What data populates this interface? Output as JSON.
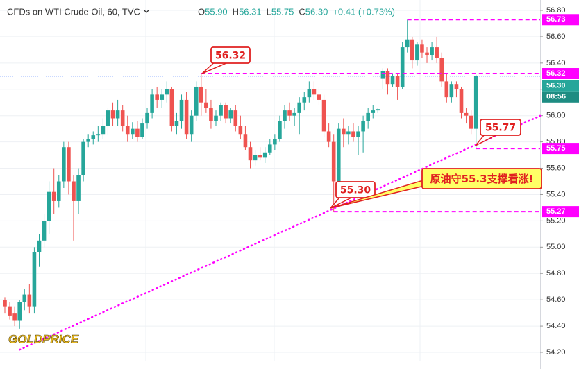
{
  "chart_data": {
    "type": "candlestick",
    "header": {
      "title": "CFDs on WTI Crude Oil, 60, TVC",
      "fields": [
        {
          "key": "O",
          "value": "55.90"
        },
        {
          "key": "H",
          "value": "56.31"
        },
        {
          "key": "L",
          "value": "55.75"
        },
        {
          "key": "C",
          "value": "56.30"
        }
      ],
      "change": "+0.41 (+0.73%)"
    },
    "up_color": "#26a69a",
    "down_color": "#ef5350",
    "ohlc": [
      [
        54.6,
        54.62,
        54.5,
        54.55
      ],
      [
        54.55,
        54.58,
        54.45,
        54.48
      ],
      [
        54.5,
        54.55,
        54.4,
        54.44
      ],
      [
        54.44,
        54.6,
        54.38,
        54.58
      ],
      [
        54.58,
        54.68,
        54.52,
        54.64
      ],
      [
        54.64,
        54.72,
        54.5,
        54.55
      ],
      [
        54.55,
        55.0,
        54.5,
        54.96
      ],
      [
        54.96,
        55.1,
        54.85,
        55.05
      ],
      [
        55.05,
        55.25,
        55.0,
        55.2
      ],
      [
        55.2,
        55.5,
        55.1,
        55.42
      ],
      [
        55.42,
        55.6,
        55.25,
        55.35
      ],
      [
        55.35,
        55.55,
        55.3,
        55.5
      ],
      [
        55.5,
        55.8,
        55.45,
        55.76
      ],
      [
        55.76,
        55.8,
        55.4,
        55.5
      ],
      [
        55.5,
        55.55,
        55.05,
        55.35
      ],
      [
        55.35,
        55.6,
        55.25,
        55.55
      ],
      [
        55.55,
        55.82,
        55.5,
        55.8
      ],
      [
        55.8,
        55.86,
        55.76,
        55.82
      ],
      [
        55.82,
        55.88,
        55.78,
        55.85
      ],
      [
        55.85,
        55.92,
        55.8,
        55.86
      ],
      [
        55.86,
        55.98,
        55.82,
        55.92
      ],
      [
        55.92,
        56.06,
        55.85,
        56.04
      ],
      [
        56.04,
        56.1,
        55.92,
        55.98
      ],
      [
        55.98,
        56.12,
        55.92,
        56.04
      ],
      [
        56.04,
        56.08,
        55.88,
        55.92
      ],
      [
        55.92,
        56.0,
        55.8,
        55.86
      ],
      [
        55.86,
        55.95,
        55.82,
        55.9
      ],
      [
        55.9,
        55.96,
        55.8,
        55.84
      ],
      [
        55.84,
        55.98,
        55.82,
        55.94
      ],
      [
        55.94,
        56.06,
        55.9,
        56.02
      ],
      [
        56.02,
        56.2,
        55.98,
        56.16
      ],
      [
        56.16,
        56.22,
        56.06,
        56.12
      ],
      [
        56.12,
        56.2,
        56.06,
        56.16
      ],
      [
        56.16,
        56.26,
        56.1,
        56.2
      ],
      [
        56.2,
        56.22,
        55.88,
        55.92
      ],
      [
        55.92,
        56.02,
        55.86,
        55.96
      ],
      [
        55.96,
        56.16,
        55.9,
        56.12
      ],
      [
        56.12,
        56.18,
        55.82,
        55.86
      ],
      [
        55.86,
        56.04,
        55.8,
        56.0
      ],
      [
        56.0,
        56.26,
        55.96,
        56.22
      ],
      [
        56.22,
        56.32,
        56.0,
        56.1
      ],
      [
        56.1,
        56.2,
        56.02,
        56.06
      ],
      [
        56.06,
        56.12,
        55.9,
        55.96
      ],
      [
        55.96,
        56.04,
        55.92,
        56.0
      ],
      [
        56.0,
        56.1,
        55.96,
        56.08
      ],
      [
        56.08,
        56.1,
        55.94,
        55.98
      ],
      [
        55.98,
        56.06,
        55.94,
        56.04
      ],
      [
        56.04,
        56.08,
        55.88,
        55.92
      ],
      [
        55.92,
        56.0,
        55.82,
        55.86
      ],
      [
        55.86,
        55.92,
        55.74,
        55.76
      ],
      [
        55.76,
        55.8,
        55.6,
        55.66
      ],
      [
        55.66,
        55.74,
        55.62,
        55.7
      ],
      [
        55.7,
        55.76,
        55.66,
        55.68
      ],
      [
        55.68,
        55.76,
        55.64,
        55.72
      ],
      [
        55.72,
        55.82,
        55.7,
        55.78
      ],
      [
        55.78,
        55.86,
        55.74,
        55.82
      ],
      [
        55.82,
        56.0,
        55.8,
        55.96
      ],
      [
        55.96,
        56.08,
        55.9,
        56.04
      ],
      [
        56.04,
        56.1,
        55.96,
        56.0
      ],
      [
        56.0,
        56.06,
        55.92,
        56.02
      ],
      [
        56.02,
        56.14,
        55.86,
        56.1
      ],
      [
        56.1,
        56.18,
        56.04,
        56.14
      ],
      [
        56.14,
        56.26,
        56.1,
        56.2
      ],
      [
        56.2,
        56.26,
        56.12,
        56.16
      ],
      [
        56.16,
        56.22,
        56.08,
        56.12
      ],
      [
        56.12,
        56.16,
        55.84,
        55.88
      ],
      [
        55.88,
        55.94,
        55.76,
        55.8
      ],
      [
        55.8,
        55.86,
        55.27,
        55.5
      ],
      [
        55.5,
        55.94,
        55.48,
        55.9
      ],
      [
        55.9,
        55.98,
        55.76,
        55.86
      ],
      [
        55.86,
        55.92,
        55.78,
        55.88
      ],
      [
        55.88,
        55.94,
        55.8,
        55.84
      ],
      [
        55.84,
        55.92,
        55.7,
        55.88
      ],
      [
        55.88,
        56.0,
        55.72,
        55.96
      ],
      [
        55.96,
        56.06,
        55.9,
        56.02
      ],
      [
        56.02,
        56.08,
        55.98,
        56.04
      ],
      [
        56.04,
        56.06,
        56.02,
        56.05
      ],
      [
        56.28,
        56.36,
        56.2,
        56.34
      ],
      [
        56.34,
        56.36,
        56.16,
        56.24
      ],
      [
        56.24,
        56.32,
        56.22,
        56.3
      ],
      [
        56.3,
        56.32,
        56.12,
        56.22
      ],
      [
        56.22,
        56.56,
        56.2,
        56.52
      ],
      [
        56.52,
        56.73,
        56.48,
        56.58
      ],
      [
        56.58,
        56.6,
        56.36,
        56.42
      ],
      [
        56.42,
        56.56,
        56.38,
        56.54
      ],
      [
        56.54,
        56.58,
        56.44,
        56.48
      ],
      [
        56.48,
        56.52,
        56.4,
        56.46
      ],
      [
        56.46,
        56.56,
        56.42,
        56.52
      ],
      [
        56.52,
        56.6,
        56.4,
        56.44
      ],
      [
        56.44,
        56.48,
        56.22,
        56.26
      ],
      [
        56.26,
        56.32,
        56.1,
        56.14
      ],
      [
        56.14,
        56.26,
        56.1,
        56.24
      ],
      [
        56.24,
        56.26,
        56.14,
        56.2
      ],
      [
        56.2,
        56.22,
        55.98,
        56.02
      ],
      [
        56.02,
        56.06,
        55.94,
        56.0
      ],
      [
        56.0,
        56.04,
        55.86,
        55.9
      ],
      [
        55.9,
        56.31,
        55.75,
        56.3
      ]
    ],
    "ylim": [
      54.2,
      56.8
    ],
    "yticks": [
      {
        "value": 54.2,
        "label": "54.20"
      },
      {
        "value": 54.4,
        "label": "54.40"
      },
      {
        "value": 54.6,
        "label": "54.60"
      },
      {
        "value": 54.8,
        "label": "54.80"
      },
      {
        "value": 55,
        "label": "55.00"
      },
      {
        "value": 55.2,
        "label": "55.20"
      },
      {
        "value": 55.4,
        "label": "55.40"
      },
      {
        "value": 55.6,
        "label": "55.60"
      },
      {
        "value": 55.8,
        "label": "55.80"
      },
      {
        "value": 56,
        "label": "56.00"
      },
      {
        "value": 56.2,
        "label": "56.20"
      },
      {
        "value": 56.4,
        "label": "56.40"
      },
      {
        "value": 56.6,
        "label": "56.60"
      },
      {
        "value": 56.8,
        "label": "56.80"
      }
    ],
    "grid": true,
    "last_price": {
      "value": 56.3,
      "label": "56.30",
      "countdown": "08:56"
    },
    "levels_color": "#ff00ff",
    "levels": [
      {
        "value": 56.73,
        "label": "56.73"
      },
      {
        "value": 56.32,
        "label": "56.32"
      },
      {
        "value": 55.75,
        "label": "55.75"
      },
      {
        "value": 55.27,
        "label": "55.27"
      }
    ],
    "trendline": {
      "x": [
        3,
        96
      ],
      "values": [
        54.22,
        55.78
      ]
    },
    "callouts": [
      "56.32",
      "55.30",
      "55.77",
      "原油守55.3支撑看涨!"
    ],
    "logo": "GOLDPRICE"
  }
}
